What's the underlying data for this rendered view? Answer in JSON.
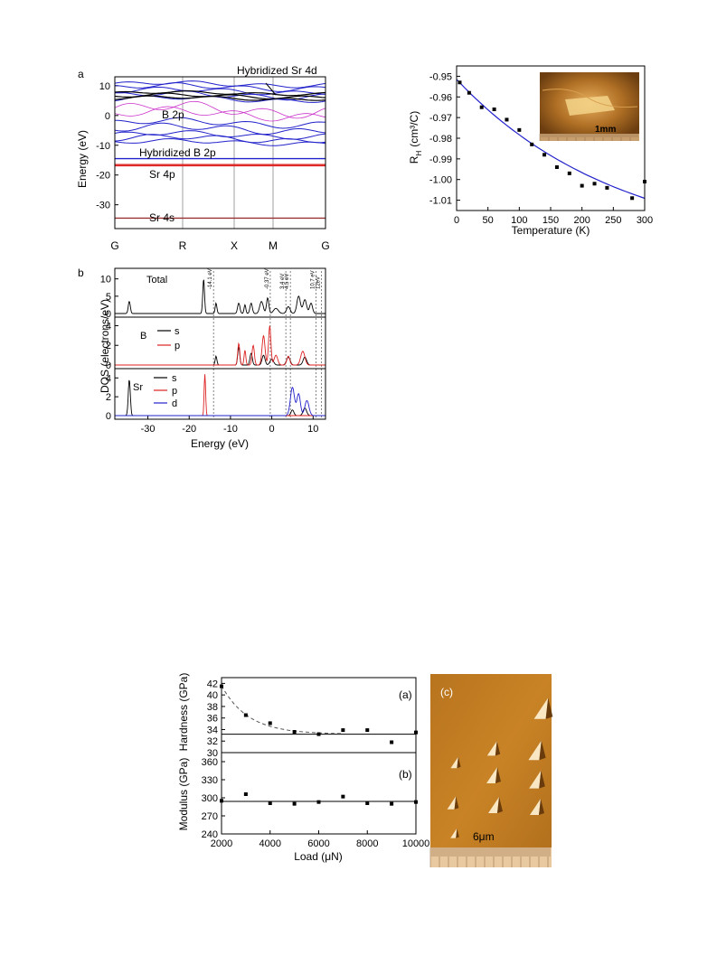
{
  "chart_data": [
    {
      "type": "line",
      "panel_label": "a",
      "ylabel": "Energy (eV)",
      "ylim": [
        -38,
        13
      ],
      "yticks": [
        "10",
        "0",
        "-10",
        "-20",
        "-30"
      ],
      "kpoints": [
        "G",
        "R",
        "X",
        "M",
        "G"
      ],
      "annotations": [
        {
          "text": "Hybridized Sr 4d",
          "color": "#000000"
        },
        {
          "text": "B 2p",
          "color": "#cc33cc"
        },
        {
          "text": "Hybridized B 2p",
          "color": "#2222cc"
        },
        {
          "text": "Sr 4p",
          "color": "#dd2222"
        },
        {
          "text": "Sr 4s",
          "color": "#993333"
        }
      ],
      "flat_bands": [
        {
          "energy": -14.5,
          "color": "#2222cc"
        },
        {
          "energy": -16.5,
          "color": "#dd2222"
        },
        {
          "energy": -34.5,
          "color": "#993333"
        }
      ]
    },
    {
      "type": "line",
      "panel_label": "b",
      "ylabel": "DOS (electrons/eV)",
      "xlabel": "Energy (eV)",
      "xlim": [
        -38,
        13
      ],
      "xticks": [
        "-30",
        "-20",
        "-10",
        "0",
        "10"
      ],
      "markers": [
        {
          "x": -14.1,
          "label": "-14.1 eV"
        },
        {
          "x": -0.37,
          "label": "-0.37 eV"
        },
        {
          "x": 3.4,
          "label": "3.4 eV"
        },
        {
          "x": 4.5,
          "label": "4.5 eV"
        },
        {
          "x": 10.7,
          "label": "10.7 eV"
        },
        {
          "x": 12,
          "label": "12eV"
        }
      ],
      "subpanels": [
        {
          "name": "Total",
          "yticks": [
            "10",
            "5",
            "0"
          ],
          "series": [
            {
              "name": "",
              "color": "#000000"
            }
          ]
        },
        {
          "name": "B",
          "yticks": [
            "4",
            "2",
            "0"
          ],
          "series": [
            {
              "name": "s",
              "color": "#000000"
            },
            {
              "name": "p",
              "color": "#dd2222"
            }
          ]
        },
        {
          "name": "Sr",
          "yticks": [
            "4",
            "2",
            "0"
          ],
          "series": [
            {
              "name": "s",
              "color": "#000000"
            },
            {
              "name": "p",
              "color": "#dd2222"
            },
            {
              "name": "d",
              "color": "#2222cc"
            }
          ]
        }
      ]
    },
    {
      "type": "scatter",
      "xlabel": "Temperature (K)",
      "ylabel_main": "R",
      "ylabel_sub": "H",
      "ylabel_unit": "(cm³/C)",
      "xlim": [
        0,
        300
      ],
      "ylim": [
        -1.015,
        -0.945
      ],
      "xticks": [
        "0",
        "50",
        "100",
        "150",
        "200",
        "250",
        "300"
      ],
      "yticks": [
        "-0.95",
        "-0.96",
        "-0.97",
        "-0.98",
        "-0.99",
        "-1.00",
        "-1.01"
      ],
      "x": [
        5,
        20,
        40,
        60,
        80,
        100,
        120,
        140,
        160,
        180,
        200,
        220,
        240,
        280,
        300
      ],
      "y": [
        -0.953,
        -0.958,
        -0.965,
        -0.966,
        -0.971,
        -0.976,
        -0.983,
        -0.988,
        -0.994,
        -0.997,
        -1.003,
        -1.002,
        -1.004,
        -1.009,
        -1.001
      ],
      "fit_color": "#2222cc",
      "inset_scale_label": "1mm"
    },
    {
      "type": "scatter",
      "panel_label": "(a)",
      "ylabel": "Hardness (GPa)",
      "xlim": [
        2000,
        10000
      ],
      "ylim": [
        30,
        43
      ],
      "yticks": [
        "42",
        "40",
        "38",
        "36",
        "34",
        "32",
        "30"
      ],
      "x": [
        2000,
        3000,
        4000,
        5000,
        6000,
        7000,
        8000,
        9000,
        10000
      ],
      "y": [
        41.5,
        36.5,
        35.1,
        33.6,
        33.2,
        33.9,
        33.9,
        31.8,
        33.5
      ],
      "reference_line": 33.2
    },
    {
      "type": "scatter",
      "panel_label": "(b)",
      "ylabel": "Modulus (GPa)",
      "xlabel": "Load (μN)",
      "xlim": [
        2000,
        10000
      ],
      "ylim": [
        240,
        375
      ],
      "xticks": [
        "2000",
        "4000",
        "6000",
        "8000",
        "10000"
      ],
      "yticks": [
        "360",
        "330",
        "300",
        "270",
        "240"
      ],
      "x": [
        2000,
        3000,
        4000,
        5000,
        6000,
        7000,
        8000,
        9000,
        10000
      ],
      "y": [
        295,
        306,
        291,
        290,
        293,
        302,
        291,
        290,
        293
      ],
      "reference_line": 294
    }
  ],
  "afm_image": {
    "panel_label": "(c)",
    "scale_label": "6μm"
  }
}
